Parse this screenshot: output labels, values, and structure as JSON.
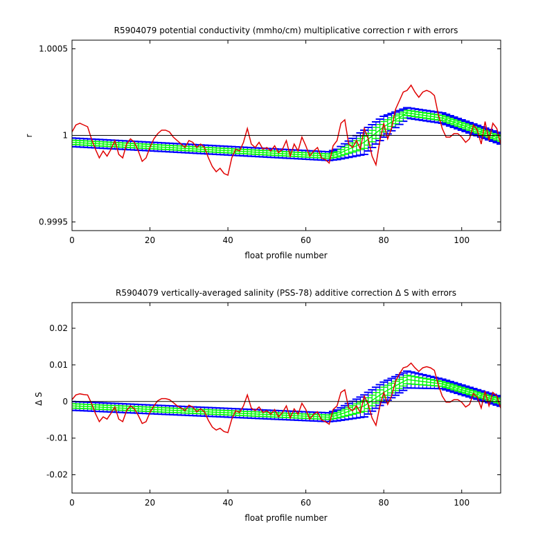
{
  "chart_data": [
    {
      "type": "line",
      "title": "R5904079 potential conductivity (mmho/cm) multiplicative correction r with errors",
      "xlabel": "float profile number",
      "ylabel": "r",
      "xlim": [
        0,
        110
      ],
      "ylim": [
        0.99945,
        1.00055
      ],
      "xticks": [
        0,
        20,
        40,
        60,
        80,
        100
      ],
      "xtick_labels": [
        "0",
        "20",
        "40",
        "60",
        "80",
        "100"
      ],
      "yticks": [
        0.9995,
        1.0,
        1.0005
      ],
      "ytick_labels": [
        "0.9995",
        "1",
        "1.0005"
      ],
      "reference_line": 1.0,
      "grid": false,
      "legend": "none",
      "colors": {
        "raw": "#e00000",
        "fit": "#00ff00",
        "error": "#0000ff",
        "reference": "#000000"
      },
      "fit": {
        "x": [
          0,
          66,
          68,
          75,
          80,
          86,
          95,
          110
        ],
        "y": [
          0.99996,
          0.99988,
          0.99989,
          0.99996,
          1.00005,
          1.00013,
          1.0001,
          0.99998
        ],
        "err": [
          2.5e-05,
          2.5e-05,
          3e-05,
          7e-05,
          6e-05,
          3e-05,
          3e-05,
          3e-05
        ]
      },
      "raw": {
        "x": [
          0,
          1,
          2,
          3,
          4,
          5,
          6,
          7,
          8,
          9,
          10,
          11,
          12,
          13,
          14,
          15,
          16,
          17,
          18,
          19,
          20,
          21,
          22,
          23,
          24,
          25,
          26,
          27,
          28,
          29,
          30,
          31,
          32,
          33,
          34,
          35,
          36,
          37,
          38,
          39,
          40,
          41,
          42,
          43,
          44,
          45,
          46,
          47,
          48,
          49,
          50,
          51,
          52,
          53,
          54,
          55,
          56,
          57,
          58,
          59,
          60,
          61,
          62,
          63,
          64,
          65,
          66,
          67,
          68,
          69,
          70,
          71,
          72,
          73,
          74,
          75,
          76,
          77,
          78,
          79,
          80,
          81,
          82,
          83,
          84,
          85,
          86,
          87,
          88,
          89,
          90,
          91,
          92,
          93,
          94,
          95,
          96,
          97,
          98,
          99,
          100,
          101,
          102,
          103,
          104,
          105,
          106,
          107,
          108,
          109,
          110
        ],
        "y": [
          1.00002,
          1.00006,
          1.00007,
          1.00006,
          1.00005,
          0.99998,
          0.99992,
          0.99987,
          0.99991,
          0.99988,
          0.99992,
          0.99997,
          0.99989,
          0.99987,
          0.99995,
          0.99998,
          0.99996,
          0.99991,
          0.99985,
          0.99987,
          0.99993,
          0.99998,
          1.00001,
          1.00003,
          1.00003,
          1.00002,
          0.99999,
          0.99997,
          0.99995,
          0.99993,
          0.99997,
          0.99996,
          0.99993,
          0.99995,
          0.99993,
          0.99987,
          0.99982,
          0.99979,
          0.99981,
          0.99978,
          0.99977,
          0.99987,
          0.99992,
          0.99991,
          0.99996,
          1.00004,
          0.99995,
          0.99993,
          0.99996,
          0.99992,
          0.99993,
          0.99991,
          0.99994,
          0.9999,
          0.99992,
          0.99997,
          0.99988,
          0.99995,
          0.99991,
          0.99999,
          0.99994,
          0.99988,
          0.99991,
          0.99993,
          0.99987,
          0.99986,
          0.99984,
          0.99994,
          0.99997,
          1.00007,
          1.00009,
          0.99995,
          0.99993,
          0.99997,
          0.99992,
          1.00004,
          0.99998,
          0.99988,
          0.99983,
          0.99997,
          1.00007,
          0.99998,
          1.00004,
          1.00015,
          1.0002,
          1.00025,
          1.00026,
          1.00029,
          1.00025,
          1.00022,
          1.00025,
          1.00026,
          1.00025,
          1.00023,
          1.00012,
          1.00004,
          0.99999,
          0.99999,
          1.00001,
          1.00001,
          0.99999,
          0.99996,
          0.99998,
          1.00006,
          1.00003,
          0.99995,
          1.00008,
          0.99997,
          1.00007,
          1.00004,
          0.99995
        ]
      }
    },
    {
      "type": "line",
      "title": "R5904079 vertically-averaged salinity (PSS-78) additive correction Δ S with errors",
      "xlabel": "float profile number",
      "ylabel": "Δ S",
      "xlim": [
        0,
        110
      ],
      "ylim": [
        -0.025,
        0.027
      ],
      "xticks": [
        0,
        20,
        40,
        60,
        80,
        100
      ],
      "xtick_labels": [
        "0",
        "20",
        "40",
        "60",
        "80",
        "100"
      ],
      "yticks": [
        -0.02,
        -0.01,
        0,
        0.01,
        0.02
      ],
      "ytick_labels": [
        "-0.02",
        "-0.01",
        "0",
        "0.01",
        "0.02"
      ],
      "reference_line": 0,
      "grid": false,
      "legend": "none",
      "colors": {
        "raw": "#e00000",
        "fit": "#00ff00",
        "error": "#0000ff",
        "reference": "#000000"
      },
      "fit": {
        "x": [
          0,
          66,
          68,
          75,
          80,
          86,
          95,
          110
        ],
        "y": [
          -0.0012,
          -0.0043,
          -0.0038,
          -0.0012,
          0.0025,
          0.006,
          0.0048,
          0.0
        ],
        "err": [
          0.0012,
          0.0012,
          0.0015,
          0.003,
          0.0028,
          0.0023,
          0.0013,
          0.0013
        ]
      },
      "raw": {
        "x": [
          0,
          1,
          2,
          3,
          4,
          5,
          6,
          7,
          8,
          9,
          10,
          11,
          12,
          13,
          14,
          15,
          16,
          17,
          18,
          19,
          20,
          21,
          22,
          23,
          24,
          25,
          26,
          27,
          28,
          29,
          30,
          31,
          32,
          33,
          34,
          35,
          36,
          37,
          38,
          39,
          40,
          41,
          42,
          43,
          44,
          45,
          46,
          47,
          48,
          49,
          50,
          51,
          52,
          53,
          54,
          55,
          56,
          57,
          58,
          59,
          60,
          61,
          62,
          63,
          64,
          65,
          66,
          67,
          68,
          69,
          70,
          71,
          72,
          73,
          74,
          75,
          76,
          77,
          78,
          79,
          80,
          81,
          82,
          83,
          84,
          85,
          86,
          87,
          88,
          89,
          90,
          91,
          92,
          93,
          94,
          95,
          96,
          97,
          98,
          99,
          100,
          101,
          102,
          103,
          104,
          105,
          106,
          107,
          108,
          109,
          110
        ],
        "y": [
          0.0005,
          0.0018,
          0.0021,
          0.0019,
          0.0018,
          -0.0005,
          -0.0033,
          -0.0055,
          -0.0042,
          -0.0048,
          -0.0032,
          -0.0015,
          -0.0048,
          -0.0055,
          -0.0025,
          -0.0012,
          -0.002,
          -0.0038,
          -0.006,
          -0.0055,
          -0.003,
          -0.0012,
          0.0002,
          0.0008,
          0.0008,
          0.0005,
          -0.0003,
          -0.0012,
          -0.0018,
          -0.0025,
          -0.001,
          -0.0015,
          -0.0028,
          -0.002,
          -0.0028,
          -0.0052,
          -0.007,
          -0.0078,
          -0.0073,
          -0.0082,
          -0.0085,
          -0.0048,
          -0.0025,
          -0.003,
          -0.0012,
          0.0018,
          -0.0018,
          -0.0025,
          -0.0015,
          -0.003,
          -0.0025,
          -0.0035,
          -0.0022,
          -0.0042,
          -0.003,
          -0.0012,
          -0.0045,
          -0.002,
          -0.0035,
          -0.0005,
          -0.0022,
          -0.0048,
          -0.0035,
          -0.0028,
          -0.005,
          -0.0055,
          -0.0062,
          -0.0022,
          -0.0012,
          0.0025,
          0.0032,
          -0.0018,
          -0.0025,
          -0.0012,
          -0.003,
          0.0015,
          -0.0008,
          -0.0045,
          -0.0065,
          -0.0012,
          0.0025,
          -0.0008,
          0.0015,
          0.0055,
          0.0075,
          0.0092,
          0.0095,
          0.0105,
          0.0092,
          0.0082,
          0.0092,
          0.0095,
          0.0092,
          0.0085,
          0.0045,
          0.0015,
          -0.0002,
          -0.0002,
          0.0005,
          0.0005,
          -0.0002,
          -0.0015,
          -0.0008,
          0.0022,
          0.0012,
          -0.0018,
          0.0028,
          -0.0012,
          0.0025,
          0.0015,
          -0.0018
        ]
      }
    }
  ]
}
